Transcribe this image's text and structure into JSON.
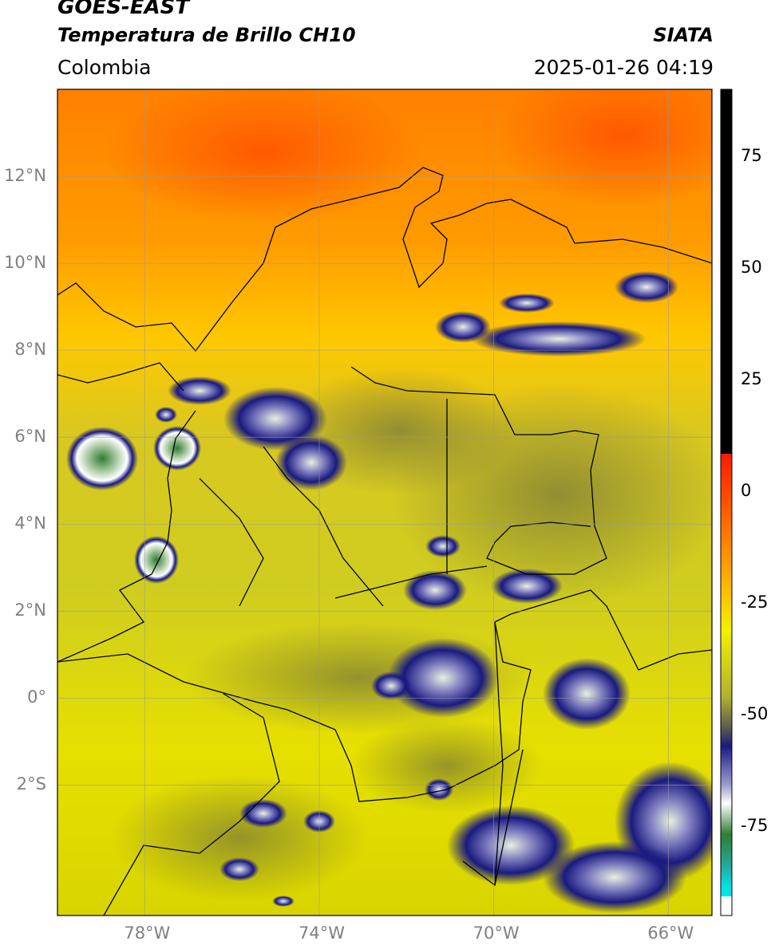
{
  "header": {
    "satellite": "GOES-EAST",
    "product": "Temperatura de Brillo CH10",
    "brand": "SIATA",
    "region": "Colombia",
    "timestamp": "2025-01-26 04:19"
  },
  "map": {
    "lon_range": [
      -80,
      -65
    ],
    "lat_range": [
      -5,
      14
    ],
    "lat_ticks": [
      {
        "value": 12,
        "label": "12°N"
      },
      {
        "value": 10,
        "label": "10°N"
      },
      {
        "value": 8,
        "label": "8°N"
      },
      {
        "value": 6,
        "label": "6°N"
      },
      {
        "value": 4,
        "label": "4°N"
      },
      {
        "value": 2,
        "label": "2°N"
      },
      {
        "value": 0,
        "label": "0°"
      },
      {
        "value": -2,
        "label": "2°S"
      }
    ],
    "lon_ticks": [
      {
        "value": -78,
        "label": "78°W"
      },
      {
        "value": -74,
        "label": "74°W"
      },
      {
        "value": -70,
        "label": "70°W"
      },
      {
        "value": -66,
        "label": "66°W"
      }
    ],
    "grid": true
  },
  "colorbar": {
    "range": [
      -95,
      90
    ],
    "ticks": [
      {
        "value": 75,
        "label": "75"
      },
      {
        "value": 50,
        "label": "50"
      },
      {
        "value": 25,
        "label": "25"
      },
      {
        "value": 0,
        "label": "0"
      },
      {
        "value": -25,
        "label": "-25"
      },
      {
        "value": -50,
        "label": "-50"
      },
      {
        "value": -75,
        "label": "-75"
      }
    ],
    "colors": {
      "black": "#000000",
      "red": "#ff1a00",
      "orange": "#ff8c00",
      "yellow": "#f5f000",
      "olive": "#6e6e3c",
      "navy": "#1a1a80",
      "white": "#ffffff",
      "green": "#2e7d32",
      "teal": "#20b2aa",
      "cyan": "#00e5e5"
    }
  }
}
